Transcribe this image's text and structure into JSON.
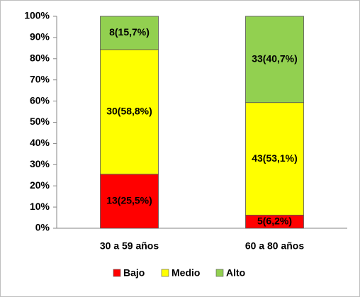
{
  "chart_data": {
    "type": "stacked_bar",
    "categories": [
      "30 a 59 años",
      "60 a 80 años"
    ],
    "series": [
      {
        "name": "Bajo",
        "color": "#ff0000",
        "values": [
          25.5,
          6.2
        ],
        "value_labels": [
          "13(25,5%)",
          "5(6,2%)"
        ]
      },
      {
        "name": "Medio",
        "color": "#ffff00",
        "values": [
          58.8,
          53.1
        ],
        "value_labels": [
          "30(58,8%)",
          "43(53,1%)"
        ]
      },
      {
        "name": "Alto",
        "color": "#92d050",
        "values": [
          15.7,
          40.7
        ],
        "value_labels": [
          "8(15,7%)",
          "33(40,7%)"
        ]
      }
    ],
    "ylim": [
      0,
      100
    ],
    "yticks": [
      {
        "value": 0,
        "label": "0%"
      },
      {
        "value": 10,
        "label": "10%"
      },
      {
        "value": 20,
        "label": "20%"
      },
      {
        "value": 30,
        "label": "30%"
      },
      {
        "value": 40,
        "label": "40%"
      },
      {
        "value": 50,
        "label": "50%"
      },
      {
        "value": 60,
        "label": "60%"
      },
      {
        "value": 70,
        "label": "70%"
      },
      {
        "value": 80,
        "label": "80%"
      },
      {
        "value": 90,
        "label": "90%"
      },
      {
        "value": 100,
        "label": "100%"
      }
    ],
    "grid": false,
    "legend": "bottom"
  }
}
